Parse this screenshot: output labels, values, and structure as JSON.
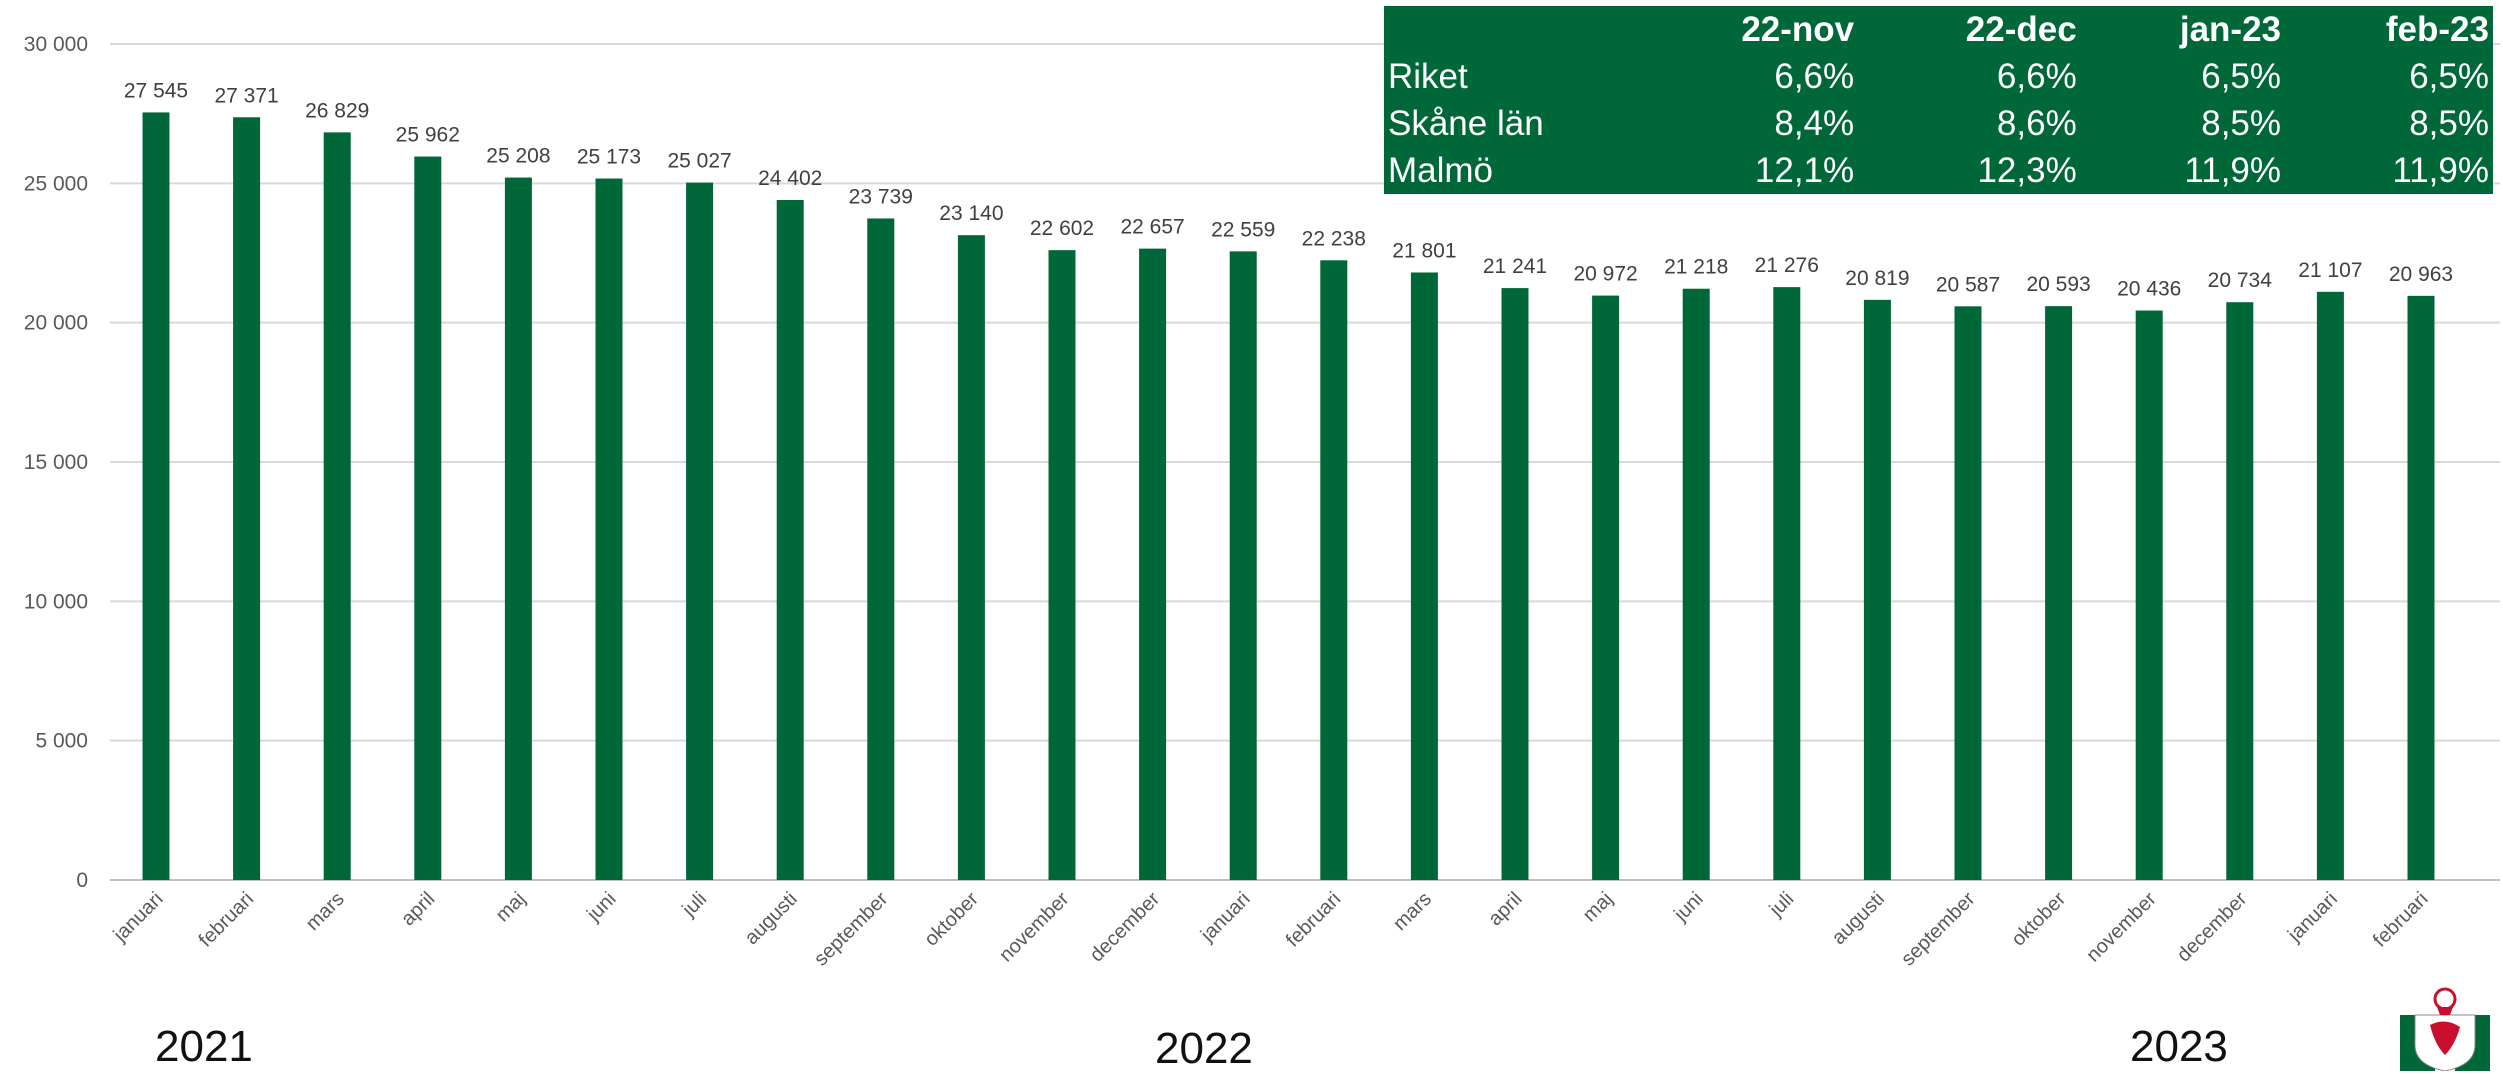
{
  "chart_data": {
    "type": "bar",
    "categories": [
      "januari",
      "februari",
      "mars",
      "april",
      "maj",
      "juni",
      "juli",
      "augusti",
      "september",
      "oktober",
      "november",
      "december",
      "januari",
      "februari",
      "mars",
      "april",
      "maj",
      "juni",
      "juli",
      "augusti",
      "september",
      "oktober",
      "november",
      "december",
      "januari",
      "februari"
    ],
    "values": [
      27545,
      27371,
      26829,
      25962,
      25208,
      25173,
      25027,
      24402,
      23739,
      23140,
      22602,
      22657,
      22559,
      22238,
      21801,
      21241,
      20972,
      21218,
      21276,
      20819,
      20587,
      20593,
      20436,
      20734,
      21107,
      20963
    ],
    "value_labels": [
      "27 545",
      "27 371",
      "26 829",
      "25 962",
      "25 208",
      "25 173",
      "25 027",
      "24 402",
      "23 739",
      "23 140",
      "22 602",
      "22 657",
      "22 559",
      "22 238",
      "21 801",
      "21 241",
      "20 972",
      "21 218",
      "21 276",
      "20 819",
      "20 587",
      "20 593",
      "20 436",
      "20 734",
      "21 107",
      "20 963"
    ],
    "ylim": [
      0,
      30000
    ],
    "yticks": [
      0,
      5000,
      10000,
      15000,
      20000,
      25000,
      30000
    ],
    "ytick_labels": [
      "0",
      "5 000",
      "10 000",
      "15 000",
      "20 000",
      "25 000",
      "30 000"
    ],
    "grid": true,
    "bar_color": "#006838",
    "year_groups": [
      "2021",
      "2022",
      "2023"
    ]
  },
  "table": {
    "headers": [
      "",
      "22-nov",
      "22-dec",
      "jan-23",
      "feb-23"
    ],
    "rows": [
      {
        "label": "Riket",
        "values": [
          "6,6%",
          "6,6%",
          "6,5%",
          "6,5%"
        ]
      },
      {
        "label": "Skåne län",
        "values": [
          "8,4%",
          "8,6%",
          "8,5%",
          "8,5%"
        ]
      },
      {
        "label": "Malmö",
        "values": [
          "12,1%",
          "12,3%",
          "11,9%",
          "11,9%"
        ]
      }
    ],
    "background": "#006838"
  },
  "logo": {
    "icon": "coat-of-arms-icon"
  }
}
